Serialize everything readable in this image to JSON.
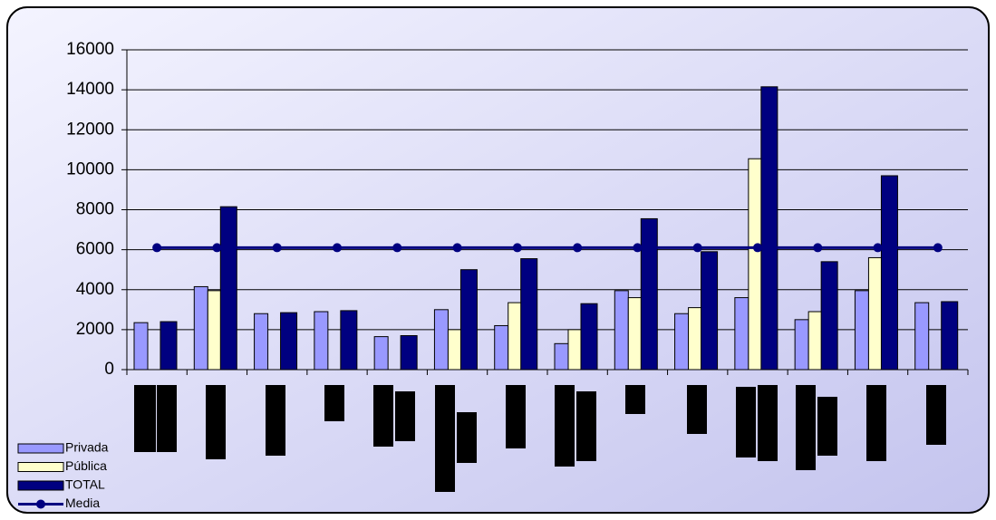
{
  "chart_data": {
    "type": "bar",
    "categories": [
      null,
      null,
      null,
      null,
      null,
      null,
      null,
      null,
      null,
      null,
      null,
      null,
      null,
      null
    ],
    "series": [
      {
        "name": "Privada",
        "color": "#9999ff",
        "values": [
          2350,
          4150,
          2800,
          2900,
          1650,
          3000,
          2200,
          1300,
          3950,
          2800,
          3600,
          2500,
          3950,
          3350
        ]
      },
      {
        "name": "Pública",
        "color": "#ffffcc",
        "values": [
          null,
          3950,
          null,
          null,
          null,
          2000,
          3350,
          2000,
          3600,
          3100,
          10550,
          2900,
          5600,
          null
        ]
      },
      {
        "name": "TOTAL",
        "color": "#000080",
        "values": [
          2400,
          8150,
          2850,
          2950,
          1700,
          5000,
          5550,
          3300,
          7550,
          5900,
          14150,
          5400,
          9700,
          3400
        ]
      },
      {
        "name": "Media",
        "color": "#000080",
        "type": "line",
        "values": [
          6100,
          6100,
          6100,
          6100,
          6100,
          6100,
          6100,
          6100,
          6100,
          6100,
          6100,
          6100,
          6100,
          6100
        ]
      }
    ],
    "ylim": [
      0,
      16000
    ],
    "yticks": [
      0,
      2000,
      4000,
      6000,
      8000,
      10000,
      12000,
      14000,
      16000
    ],
    "grid": true,
    "legend": "bottom-left"
  }
}
